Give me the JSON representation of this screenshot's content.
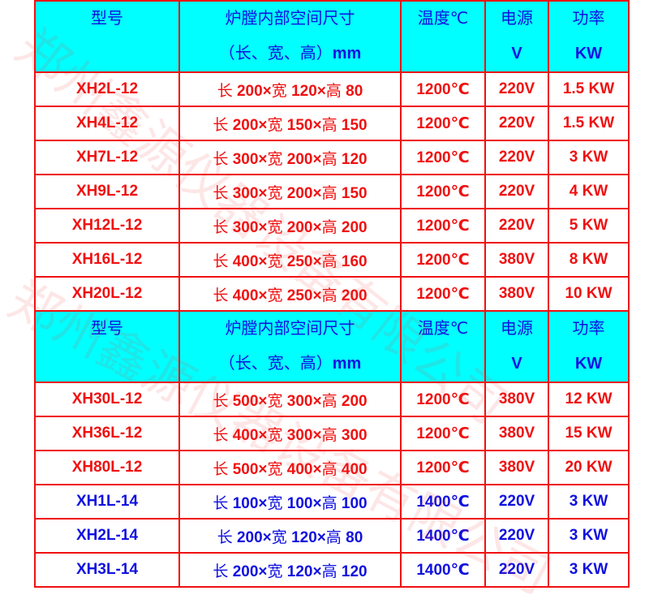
{
  "header": {
    "model": "型号",
    "size_line1": "炉膛内部空间尺寸",
    "size_line2": "（长、宽、高）",
    "size_unit": "mm",
    "temp": "温度℃",
    "power_source": "电源",
    "power_source_unit": "V",
    "power": "功率",
    "power_unit": "KW"
  },
  "rows_group1": [
    {
      "model": "XH2L-12",
      "l": "长",
      "lv": "200×",
      "w": "宽",
      "wv": "120×",
      "h": "高",
      "hv": "80",
      "temp": "1200℃",
      "volt": "220V",
      "power": "1.5 KW"
    },
    {
      "model": "XH4L-12",
      "l": "长",
      "lv": "200×",
      "w": "宽",
      "wv": "150×",
      "h": "高",
      "hv": "150",
      "temp": "1200℃",
      "volt": "220V",
      "power": "1.5 KW"
    },
    {
      "model": "XH7L-12",
      "l": "长",
      "lv": "300×",
      "w": "宽",
      "wv": "200×",
      "h": "高",
      "hv": "120",
      "temp": "1200℃",
      "volt": "220V",
      "power": "3 KW"
    },
    {
      "model": "XH9L-12",
      "l": "长",
      "lv": "300×",
      "w": "宽",
      "wv": "200×",
      "h": "高",
      "hv": "150",
      "temp": "1200℃",
      "volt": "220V",
      "power": "4 KW"
    },
    {
      "model": "XH12L-12",
      "l": "长",
      "lv": "300×",
      "w": "宽",
      "wv": "200×",
      "h": "高",
      "hv": "200",
      "temp": "1200℃",
      "volt": "220V",
      "power": "5 KW"
    },
    {
      "model": "XH16L-12",
      "l": "长",
      "lv": "400×",
      "w": "宽",
      "wv": "250×",
      "h": "高",
      "hv": "160",
      "temp": "1200℃",
      "volt": "380V",
      "power": "8 KW"
    },
    {
      "model": "XH20L-12",
      "l": "长",
      "lv": "400×",
      "w": "宽",
      "wv": "250×",
      "h": "高",
      "hv": "200",
      "temp": "1200℃",
      "volt": "380V",
      "power": "10 KW"
    }
  ],
  "rows_group2": [
    {
      "model": "XH30L-12",
      "l": "长",
      "lv": "500×",
      "w": "宽",
      "wv": "300×",
      "h": "高",
      "hv": "200",
      "temp": "1200℃",
      "volt": "380V",
      "power": "12 KW",
      "color": "red"
    },
    {
      "model": "XH36L-12",
      "l": "长",
      "lv": "400×",
      "w": "宽",
      "wv": "300×",
      "h": "高",
      "hv": "300",
      "temp": "1200℃",
      "volt": "380V",
      "power": "15 KW",
      "color": "red"
    },
    {
      "model": "XH80L-12",
      "l": "长",
      "lv": "500×",
      "w": "宽",
      "wv": "400×",
      "h": "高",
      "hv": "400",
      "temp": "1200℃",
      "volt": "380V",
      "power": "20 KW",
      "color": "red"
    },
    {
      "model": "XH1L-14",
      "l": "长",
      "lv": "100×",
      "w": "宽",
      "wv": "100×",
      "h": "高",
      "hv": "100",
      "temp": "1400℃",
      "volt": "220V",
      "power": "3 KW",
      "color": "blue"
    },
    {
      "model": "XH2L-14",
      "l": "长",
      "lv": "200×",
      "w": "宽",
      "wv": "120×",
      "h": "高",
      "hv": "80",
      "temp": "1400℃",
      "volt": "220V",
      "power": "3 KW",
      "color": "blue"
    },
    {
      "model": "XH3L-14",
      "l": "长",
      "lv": "200×",
      "w": "宽",
      "wv": "120×",
      "h": "高",
      "hv": "120",
      "temp": "1400℃",
      "volt": "220V",
      "power": "3 KW",
      "color": "blue"
    }
  ],
  "watermark": "郑州鑫源仪器设备有限公司",
  "colors": {
    "border": "#f01010",
    "header_bg": "#00ffff",
    "header_text": "#1010e0",
    "red_text": "#f01010",
    "blue_text": "#1010e0"
  }
}
